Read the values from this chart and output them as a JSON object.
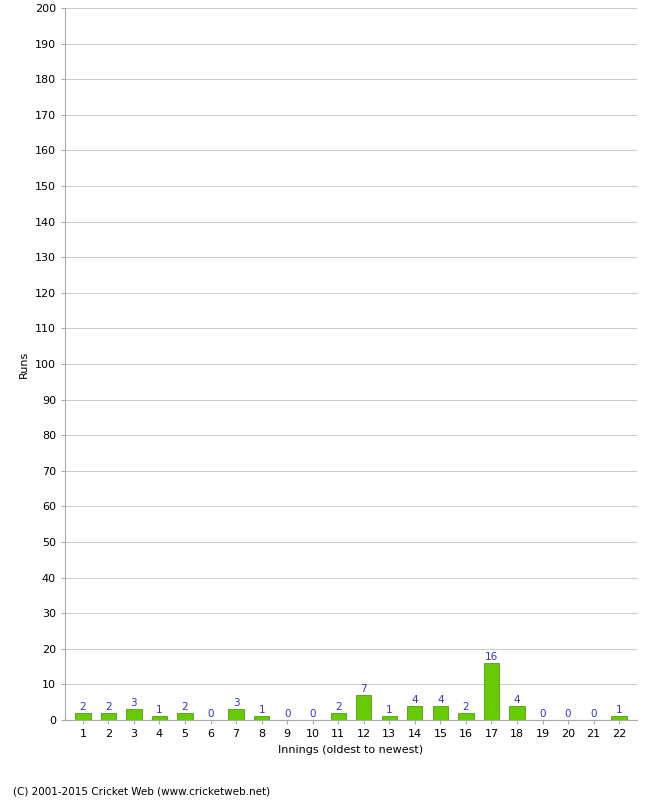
{
  "title": "",
  "xlabel": "Innings (oldest to newest)",
  "ylabel": "Runs",
  "innings": [
    1,
    2,
    3,
    4,
    5,
    6,
    7,
    8,
    9,
    10,
    11,
    12,
    13,
    14,
    15,
    16,
    17,
    18,
    19,
    20,
    21,
    22
  ],
  "values": [
    2,
    2,
    3,
    1,
    2,
    0,
    3,
    1,
    0,
    0,
    2,
    7,
    1,
    4,
    4,
    2,
    16,
    4,
    0,
    0,
    0,
    1
  ],
  "bar_color": "#66cc00",
  "bar_edge_color": "#448800",
  "label_color": "#3333cc",
  "ylim": [
    0,
    200
  ],
  "yticks": [
    0,
    10,
    20,
    30,
    40,
    50,
    60,
    70,
    80,
    90,
    100,
    110,
    120,
    130,
    140,
    150,
    160,
    170,
    180,
    190,
    200
  ],
  "background_color": "#ffffff",
  "grid_color": "#cccccc",
  "footer": "(C) 2001-2015 Cricket Web (www.cricketweb.net)",
  "label_fontsize": 7.5,
  "axis_fontsize": 8,
  "ylabel_fontsize": 8,
  "xlabel_fontsize": 8,
  "bar_width": 0.6
}
